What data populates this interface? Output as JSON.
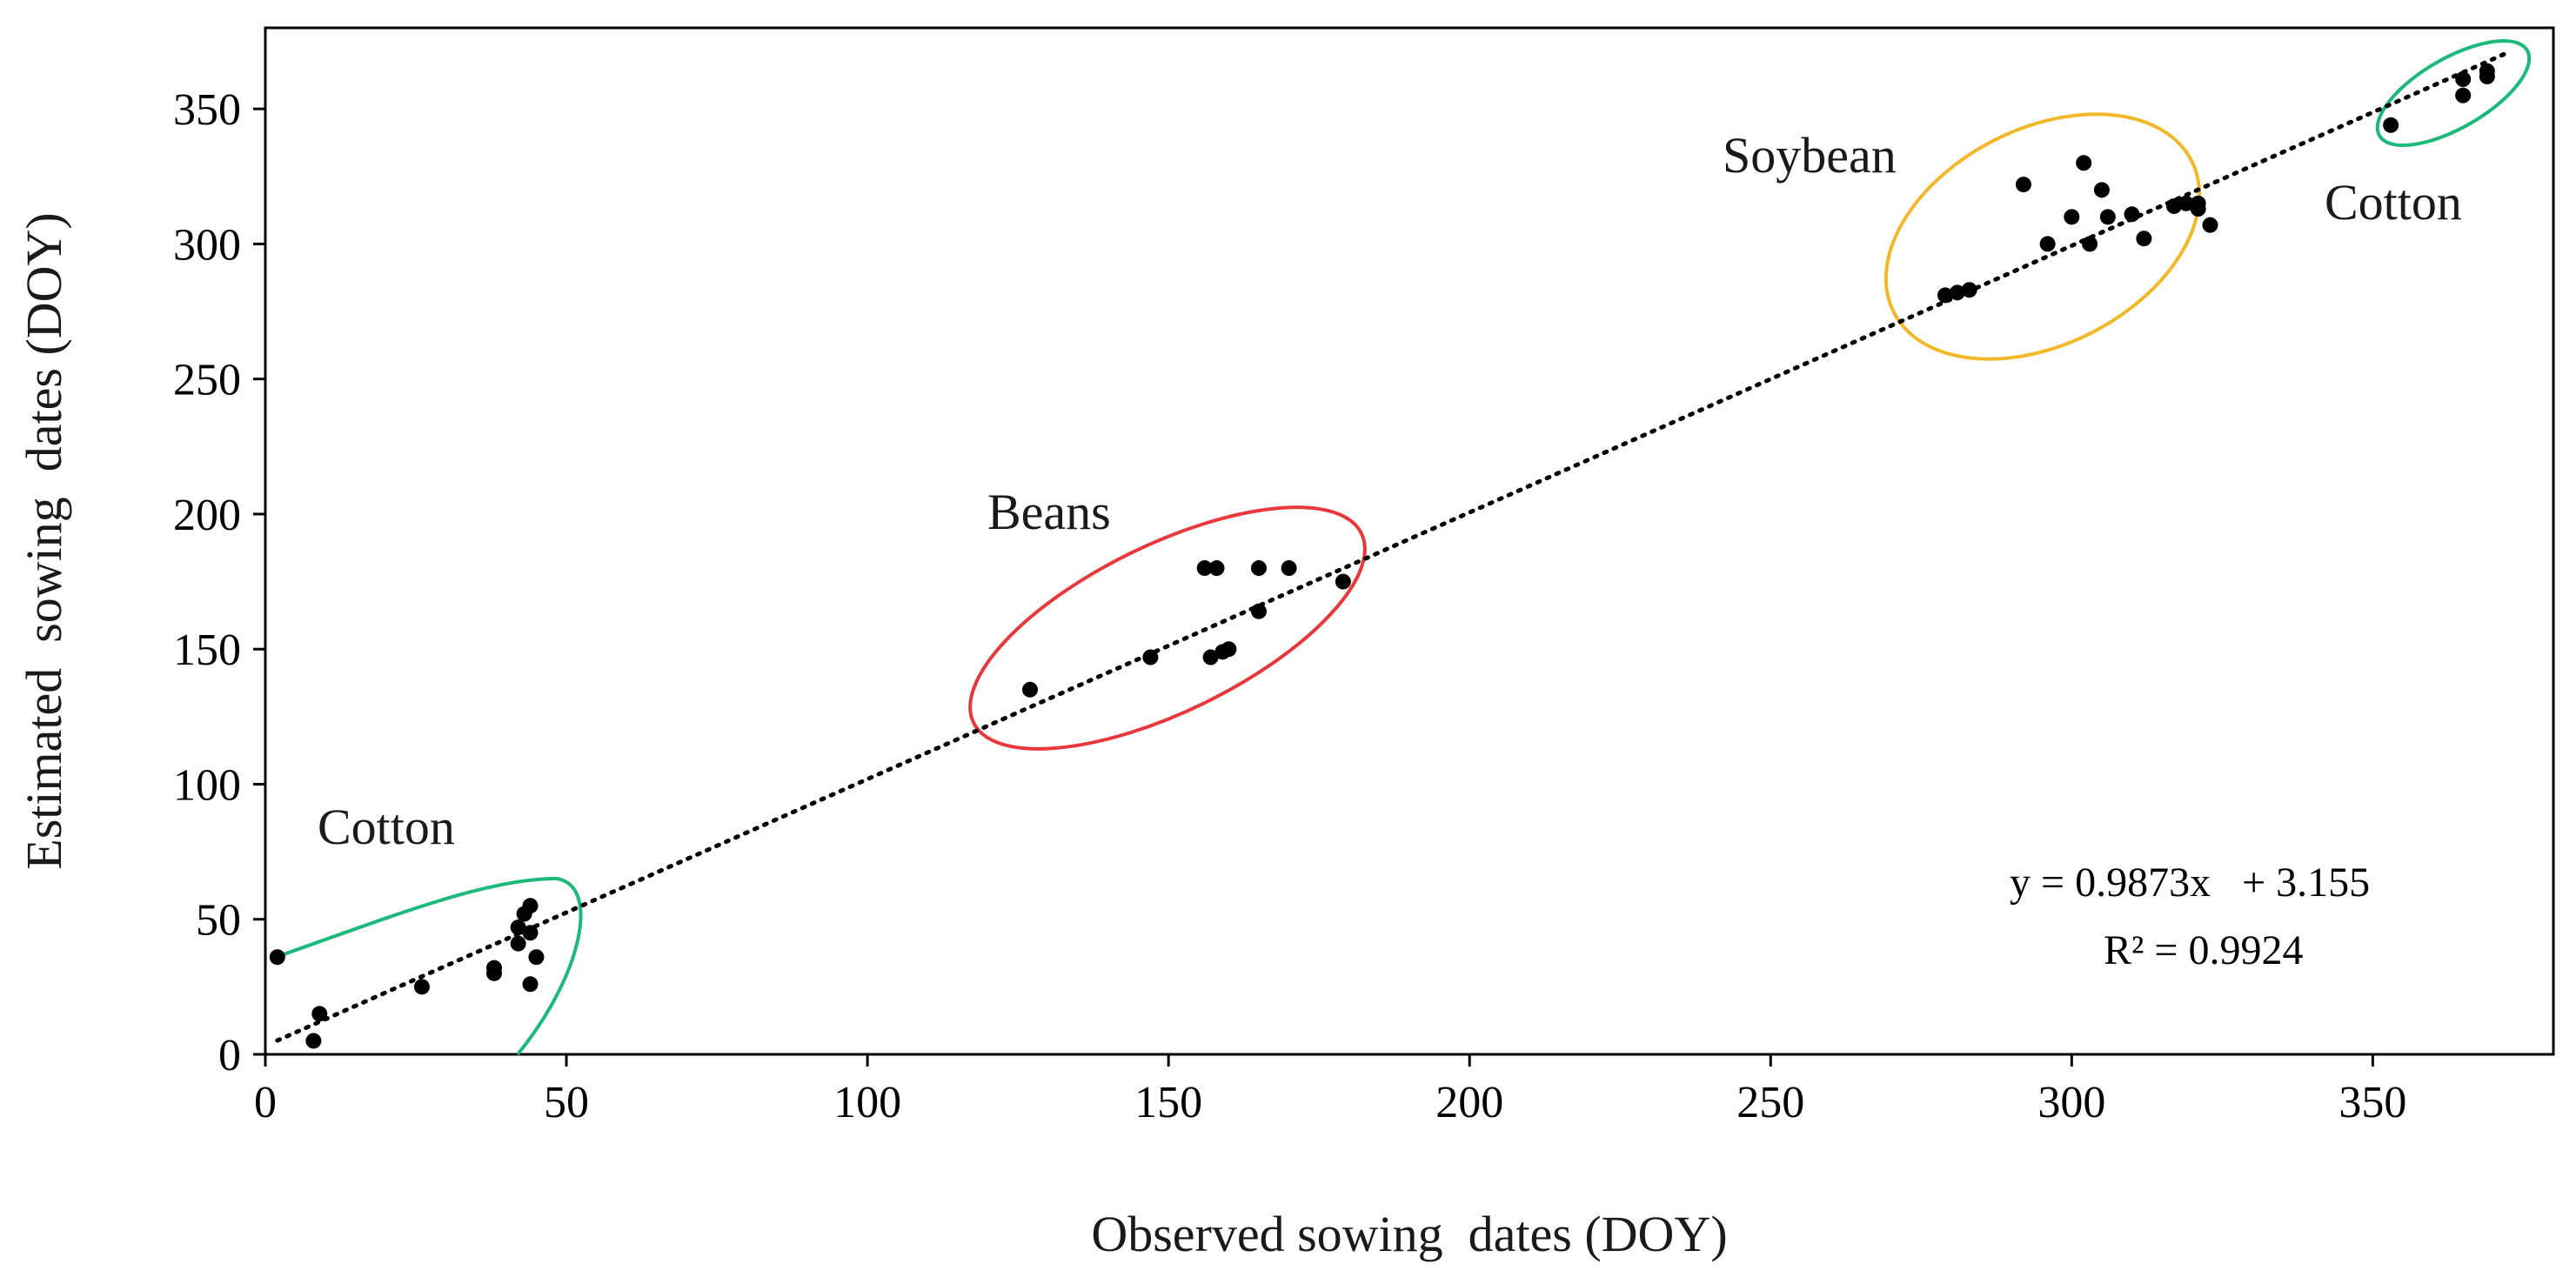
{
  "chart_data": {
    "type": "scatter",
    "xlabel": "Observed sowing  dates (DOY)",
    "ylabel": "Estimated  sowing  dates (DOY)",
    "xlim": [
      0,
      380
    ],
    "ylim": [
      0,
      380
    ],
    "xticks": [
      0,
      50,
      100,
      150,
      200,
      250,
      300,
      350
    ],
    "yticks": [
      0,
      50,
      100,
      150,
      200,
      250,
      300,
      350
    ],
    "grid": false,
    "trendline": {
      "slope": 0.9873,
      "intercept": 3.155,
      "style": "dotted",
      "x_range": [
        2,
        372
      ]
    },
    "equation_lines": [
      "y = 0.9873x   + 3.155",
      "R² = 0.9924"
    ],
    "groups": [
      {
        "label": "Cotton",
        "color": "#1db97a",
        "shape": "loop",
        "points": [
          [
            2,
            36
          ],
          [
            8,
            5
          ],
          [
            9,
            15
          ],
          [
            26,
            25
          ],
          [
            38,
            32
          ],
          [
            38,
            30
          ],
          [
            42,
            47
          ],
          [
            42,
            41
          ],
          [
            43,
            52
          ],
          [
            44,
            55
          ],
          [
            44,
            45
          ],
          [
            44,
            26
          ],
          [
            45,
            36
          ]
        ]
      },
      {
        "label": "Beans",
        "color": "#e8383c",
        "shape": "ellipse",
        "points": [
          [
            127,
            135
          ],
          [
            147,
            147
          ],
          [
            156,
            180
          ],
          [
            158,
            180
          ],
          [
            157,
            147
          ],
          [
            159,
            149
          ],
          [
            160,
            150
          ],
          [
            165,
            180
          ],
          [
            165,
            164
          ],
          [
            170,
            180
          ],
          [
            179,
            175
          ]
        ]
      },
      {
        "label": "Soybean",
        "color": "#f3b82a",
        "shape": "ellipse",
        "points": [
          [
            279,
            281
          ],
          [
            281,
            282
          ],
          [
            283,
            283
          ],
          [
            292,
            322
          ],
          [
            296,
            300
          ],
          [
            300,
            310
          ],
          [
            302,
            330
          ],
          [
            303,
            300
          ],
          [
            305,
            320
          ],
          [
            306,
            310
          ],
          [
            310,
            311
          ],
          [
            312,
            302
          ],
          [
            317,
            314
          ],
          [
            319,
            315
          ],
          [
            321,
            315
          ],
          [
            321,
            313
          ],
          [
            323,
            307
          ]
        ]
      },
      {
        "label": "Cotton",
        "color": "#1db97a",
        "shape": "ellipse",
        "points": [
          [
            353,
            344
          ],
          [
            365,
            361
          ],
          [
            365,
            355
          ],
          [
            369,
            364
          ],
          [
            369,
            362
          ]
        ]
      }
    ]
  }
}
